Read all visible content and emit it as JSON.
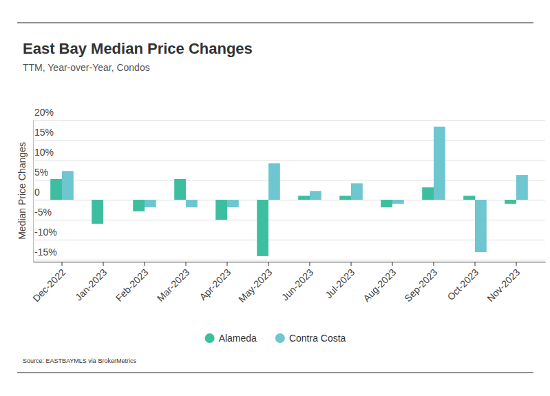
{
  "chart_data": {
    "type": "bar",
    "title": "East Bay Median Price Changes",
    "subtitle": "TTM, Year-over-Year, Condos",
    "y_label": "Median Price Changes",
    "source": "Source:  EASTBAYMLS via BrokerMetrics",
    "categories": [
      "Dec-2022",
      "Jan-2023",
      "Feb-2023",
      "Mar-2023",
      "Apr-2023",
      "May-2023",
      "Jun-2023",
      "Jul-2023",
      "Aug-2023",
      "Sep-2023",
      "Oct-2023",
      "Nov-2023"
    ],
    "series": [
      {
        "name": "Alameda",
        "color": "#3dbf9f",
        "values": [
          5.2,
          -6.0,
          -2.9,
          5.2,
          -5.0,
          -14.1,
          1.0,
          1.0,
          -1.9,
          3.1,
          1.0,
          -1.0
        ]
      },
      {
        "name": "Contra Costa",
        "color": "#6ec6d0",
        "values": [
          7.2,
          0,
          -1.9,
          -1.9,
          -1.9,
          9.1,
          2.2,
          4.1,
          -1.0,
          18.3,
          -13.1,
          6.2
        ]
      }
    ],
    "ylim": [
      -15.5,
      20
    ],
    "yticks": [
      {
        "value": 20,
        "label": "20%"
      },
      {
        "value": 15,
        "label": "15%"
      },
      {
        "value": 10,
        "label": "10%"
      },
      {
        "value": 5,
        "label": "5%"
      },
      0,
      {
        "value": -5,
        "label": "-5%"
      },
      {
        "value": -10,
        "label": "-10%"
      },
      {
        "value": -15,
        "label": "-15%"
      }
    ],
    "grid": true,
    "legend": "bottom"
  }
}
